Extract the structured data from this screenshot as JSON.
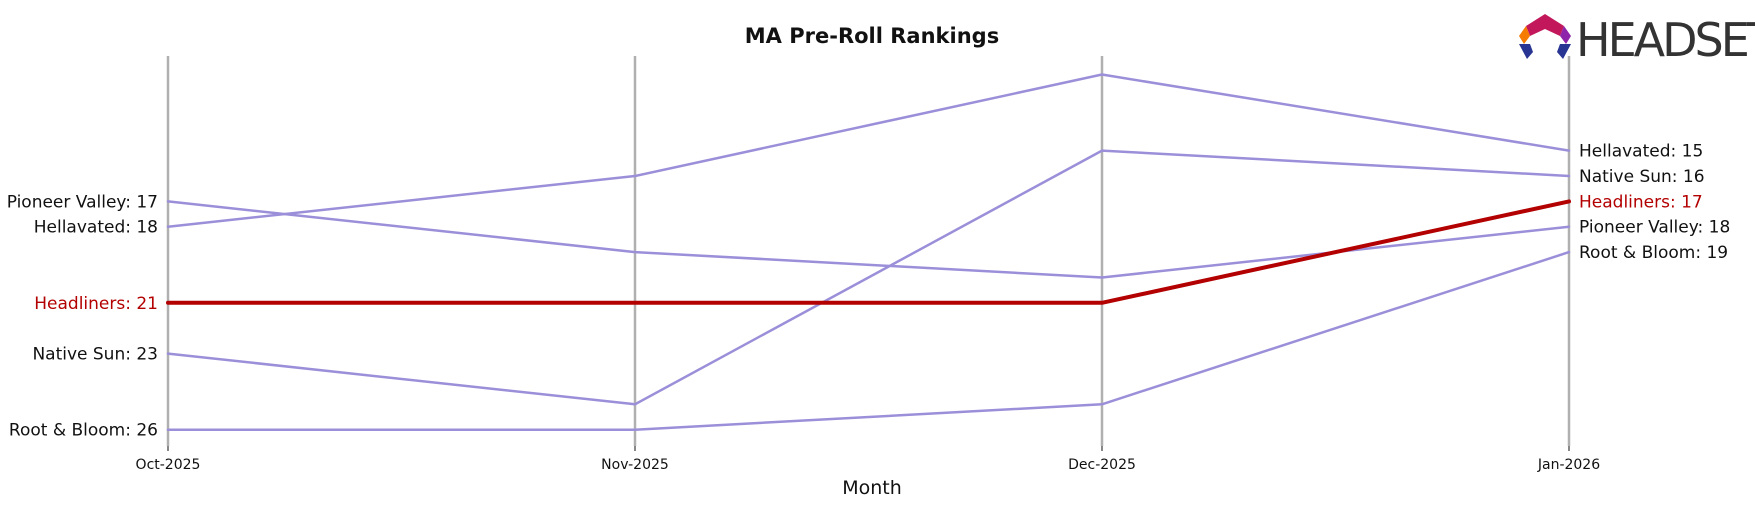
{
  "brand": {
    "name": "HEADSET"
  },
  "chart_data": {
    "type": "line",
    "title": "MA Pre-Roll Rankings",
    "xlabel": "Month",
    "ylabel": "",
    "categories": [
      "Oct-2025",
      "Nov-2025",
      "Dec-2025",
      "Jan-2026"
    ],
    "y_inverted": true,
    "ylim": [
      29,
      12
    ],
    "grid": false,
    "highlight_color": "#b30000",
    "series_color": "#9b8fd9",
    "axis_line_color": "#b0b0b0",
    "series": [
      {
        "name": "Pioneer Valley",
        "values": [
          17,
          19,
          20,
          18
        ],
        "highlight": false
      },
      {
        "name": "Hellavated",
        "values": [
          18,
          16,
          12,
          15
        ],
        "highlight": false
      },
      {
        "name": "Headliners",
        "values": [
          21,
          21,
          21,
          17
        ],
        "highlight": true
      },
      {
        "name": "Native Sun",
        "values": [
          23,
          25,
          15,
          16
        ],
        "highlight": false
      },
      {
        "name": "Root & Bloom",
        "values": [
          26,
          26,
          25,
          19
        ],
        "highlight": false
      }
    ]
  }
}
